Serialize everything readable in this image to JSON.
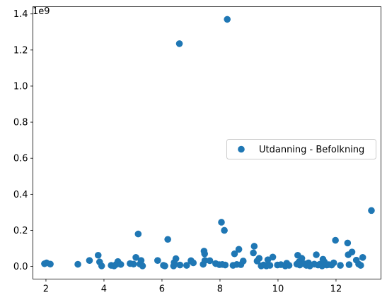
{
  "chart_data": {
    "type": "scatter",
    "title": "",
    "xlabel": "",
    "ylabel": "",
    "offset_text": "1e9",
    "xlim": [
      1.55,
      13.55
    ],
    "ylim": [
      -0.07,
      1.44
    ],
    "x_ticks": [
      2,
      4,
      6,
      8,
      10,
      12
    ],
    "x_tick_labels": [
      "2",
      "4",
      "6",
      "8",
      "10",
      "12"
    ],
    "y_ticks": [
      0.0,
      0.2,
      0.4,
      0.6,
      0.8,
      1.0,
      1.2,
      1.4
    ],
    "y_tick_labels": [
      "0.0",
      "0.2",
      "0.4",
      "0.6",
      "0.8",
      "1.0",
      "1.2",
      "1.4"
    ],
    "grid": false,
    "legend_position": "center-right",
    "series": [
      {
        "name": "Utdanning - Befolkning",
        "color": "#1f77b4",
        "points": [
          [
            1.95,
            0.015
          ],
          [
            2.02,
            0.02
          ],
          [
            2.15,
            0.013
          ],
          [
            3.1,
            0.012
          ],
          [
            3.5,
            0.033
          ],
          [
            3.8,
            0.062
          ],
          [
            3.85,
            0.025
          ],
          [
            3.92,
            0.003
          ],
          [
            4.25,
            0.006
          ],
          [
            4.35,
            0.003
          ],
          [
            4.42,
            0.011
          ],
          [
            4.48,
            0.027
          ],
          [
            4.58,
            0.011
          ],
          [
            4.9,
            0.016
          ],
          [
            5.02,
            0.013
          ],
          [
            5.1,
            0.05
          ],
          [
            5.18,
            0.18
          ],
          [
            5.24,
            0.013
          ],
          [
            5.28,
            0.033
          ],
          [
            5.33,
            0.003
          ],
          [
            5.85,
            0.033
          ],
          [
            6.05,
            0.006
          ],
          [
            6.1,
            0.003
          ],
          [
            6.2,
            0.15
          ],
          [
            6.4,
            0.003
          ],
          [
            6.42,
            0.022
          ],
          [
            6.48,
            0.043
          ],
          [
            6.6,
            1.235
          ],
          [
            6.62,
            0.008
          ],
          [
            6.85,
            0.006
          ],
          [
            7.0,
            0.032
          ],
          [
            7.08,
            0.02
          ],
          [
            7.42,
            0.012
          ],
          [
            7.45,
            0.085
          ],
          [
            7.47,
            0.07
          ],
          [
            7.48,
            0.033
          ],
          [
            7.65,
            0.032
          ],
          [
            7.85,
            0.016
          ],
          [
            7.98,
            0.01
          ],
          [
            8.05,
            0.245
          ],
          [
            8.08,
            0.011
          ],
          [
            8.15,
            0.2
          ],
          [
            8.18,
            0.008
          ],
          [
            8.25,
            1.37
          ],
          [
            8.45,
            0.006
          ],
          [
            8.5,
            0.07
          ],
          [
            8.58,
            0.011
          ],
          [
            8.65,
            0.095
          ],
          [
            8.72,
            0.01
          ],
          [
            8.8,
            0.03
          ],
          [
            9.15,
            0.075
          ],
          [
            9.18,
            0.112
          ],
          [
            9.28,
            0.03
          ],
          [
            9.35,
            0.045
          ],
          [
            9.42,
            0.003
          ],
          [
            9.5,
            0.008
          ],
          [
            9.6,
            0.003
          ],
          [
            9.65,
            0.037
          ],
          [
            9.72,
            0.006
          ],
          [
            9.82,
            0.052
          ],
          [
            9.98,
            0.008
          ],
          [
            10.1,
            0.01
          ],
          [
            10.25,
            0.003
          ],
          [
            10.3,
            0.018
          ],
          [
            10.38,
            0.006
          ],
          [
            10.65,
            0.013
          ],
          [
            10.68,
            0.062
          ],
          [
            10.72,
            0.025
          ],
          [
            10.75,
            0.008
          ],
          [
            10.82,
            0.045
          ],
          [
            10.9,
            0.015
          ],
          [
            10.98,
            0.006
          ],
          [
            11.05,
            0.02
          ],
          [
            11.1,
            0.003
          ],
          [
            11.25,
            0.013
          ],
          [
            11.32,
            0.065
          ],
          [
            11.38,
            0.008
          ],
          [
            11.45,
            0.013
          ],
          [
            11.52,
            0.003
          ],
          [
            11.55,
            0.04
          ],
          [
            11.6,
            0.025
          ],
          [
            11.68,
            0.008
          ],
          [
            11.75,
            0.01
          ],
          [
            11.85,
            0.008
          ],
          [
            11.92,
            0.02
          ],
          [
            11.98,
            0.145
          ],
          [
            12.15,
            0.006
          ],
          [
            12.4,
            0.13
          ],
          [
            12.42,
            0.065
          ],
          [
            12.45,
            0.01
          ],
          [
            12.55,
            0.08
          ],
          [
            12.7,
            0.035
          ],
          [
            12.78,
            0.013
          ],
          [
            12.85,
            0.006
          ],
          [
            12.92,
            0.05
          ],
          [
            13.22,
            0.31
          ]
        ]
      }
    ]
  }
}
